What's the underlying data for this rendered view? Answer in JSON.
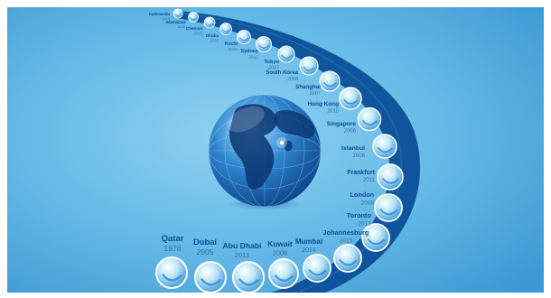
{
  "colors": {
    "background_center": "#7cc8ec",
    "background_edge": "#3c9cd6",
    "band": "#0b4e98",
    "label_city": "#0d4c95",
    "label_year": "#3f6f98",
    "bubble_light": "#ffffff",
    "bubble_mid": "#9fd8f2",
    "bubble_dark": "#2e8fd0"
  },
  "icons": {
    "globe": "globe-icon"
  },
  "locations": [
    {
      "city": "Kathmandu",
      "year": "2016"
    },
    {
      "city": "Islamabad",
      "year": "2016"
    },
    {
      "city": "Chennai",
      "year": "2016"
    },
    {
      "city": "Dhaka",
      "year": "2016"
    },
    {
      "city": "Kochi",
      "year": "2015"
    },
    {
      "city": "Sydney",
      "year": "2012"
    },
    {
      "city": "Tokyo",
      "year": "2007"
    },
    {
      "city": "South Korea",
      "year": "2008"
    },
    {
      "city": "Shanghai",
      "year": "2007"
    },
    {
      "city": "Hong Kong",
      "year": "2015"
    },
    {
      "city": "Singapore",
      "year": "2006"
    },
    {
      "city": "Istanbul",
      "year": "2006"
    },
    {
      "city": "Frankfurt",
      "year": "2011"
    },
    {
      "city": "London",
      "year": "2008"
    },
    {
      "city": "Toronto",
      "year": "2013"
    },
    {
      "city": "Johannesburg",
      "year": "2015"
    },
    {
      "city": "Mumbai",
      "year": "2014"
    },
    {
      "city": "Kuwait",
      "year": "2008"
    },
    {
      "city": "Abu Dhabi",
      "year": "2011"
    },
    {
      "city": "Dubai",
      "year": "2005"
    },
    {
      "city": "Qatar",
      "year": "1978"
    }
  ]
}
